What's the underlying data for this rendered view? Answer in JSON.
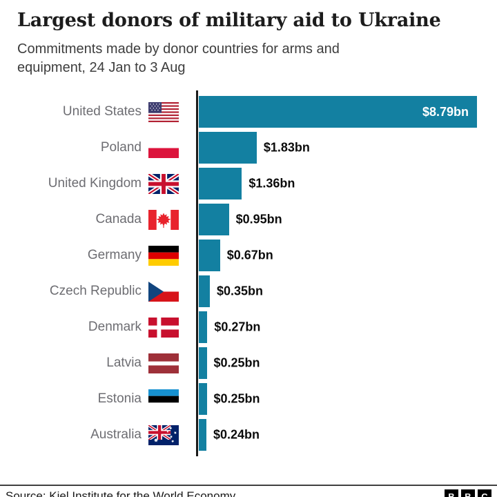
{
  "chart_data": {
    "type": "bar",
    "orientation": "horizontal",
    "title": "Largest donors of military aid to Ukraine",
    "subtitle": "Commitments made by donor countries for arms and equipment, 24 Jan to 3 Aug",
    "categories": [
      "United States",
      "Poland",
      "United Kingdom",
      "Canada",
      "Germany",
      "Czech Republic",
      "Denmark",
      "Latvia",
      "Estonia",
      "Australia"
    ],
    "values": [
      8.79,
      1.83,
      1.36,
      0.95,
      0.67,
      0.35,
      0.27,
      0.25,
      0.25,
      0.24
    ],
    "value_labels": [
      "$8.79bn",
      "$1.83bn",
      "$1.36bn",
      "$0.95bn",
      "$0.67bn",
      "$0.35bn",
      "$0.27bn",
      "$0.25bn",
      "$0.25bn",
      "$0.24bn"
    ],
    "value_label_inside": [
      true,
      false,
      false,
      false,
      false,
      false,
      false,
      false,
      false,
      false
    ],
    "flag_icons": [
      "us-flag-icon",
      "pl-flag-icon",
      "gb-flag-icon",
      "ca-flag-icon",
      "de-flag-icon",
      "cz-flag-icon",
      "dk-flag-icon",
      "lv-flag-icon",
      "ee-flag-icon",
      "au-flag-icon"
    ],
    "xlim": [
      0,
      8.79
    ],
    "bar_color": "#1380A1",
    "grid": "off",
    "legend": "none",
    "unit": "$bn"
  },
  "colors": {
    "bar": "#1380A1",
    "axis": "#1a1a1a",
    "title": "#1c1c1c",
    "subtitle": "#3d3d3d",
    "country_label": "#6d6d72",
    "value_label": "#0c0c0c",
    "value_label_inside": "#ffffff"
  },
  "footer": {
    "source": "Source: Kiel Institute for the World Economy",
    "logo_letters": [
      "B",
      "B",
      "C"
    ]
  }
}
